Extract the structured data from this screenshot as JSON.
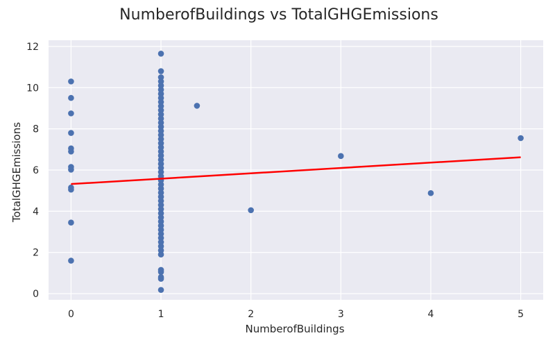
{
  "chart_data": {
    "type": "scatter",
    "title": "NumberofBuildings vs TotalGHGEmissions",
    "xlabel": "NumberofBuildings",
    "ylabel": "TotalGHGEmissions",
    "xlim": [
      -0.25,
      5.25
    ],
    "ylim": [
      -0.3,
      12.3
    ],
    "x_ticks": [
      0,
      1,
      2,
      3,
      4,
      5
    ],
    "y_ticks": [
      0,
      2,
      4,
      6,
      8,
      10,
      12
    ],
    "grid": true,
    "colors": {
      "points": "#4c72b0",
      "fit_line": "#ff0000",
      "plot_bg": "#eaeaf2",
      "grid": "#ffffff"
    },
    "points": [
      {
        "x": 0,
        "y": 10.3
      },
      {
        "x": 0,
        "y": 9.5
      },
      {
        "x": 0,
        "y": 8.75
      },
      {
        "x": 0,
        "y": 7.8
      },
      {
        "x": 0,
        "y": 7.05
      },
      {
        "x": 0,
        "y": 6.9
      },
      {
        "x": 0,
        "y": 6.15
      },
      {
        "x": 0,
        "y": 6.02
      },
      {
        "x": 0,
        "y": 5.15
      },
      {
        "x": 0,
        "y": 5.05
      },
      {
        "x": 0,
        "y": 3.45
      },
      {
        "x": 0,
        "y": 1.6
      },
      {
        "x": 1,
        "y": 11.65
      },
      {
        "x": 1,
        "y": 10.8
      },
      {
        "x": 1,
        "y": 10.5
      },
      {
        "x": 1,
        "y": 10.3
      },
      {
        "x": 1,
        "y": 10.1
      },
      {
        "x": 1,
        "y": 9.9
      },
      {
        "x": 1,
        "y": 9.7
      },
      {
        "x": 1,
        "y": 9.5
      },
      {
        "x": 1,
        "y": 9.3
      },
      {
        "x": 1,
        "y": 9.1
      },
      {
        "x": 1,
        "y": 8.9
      },
      {
        "x": 1,
        "y": 8.7
      },
      {
        "x": 1,
        "y": 8.5
      },
      {
        "x": 1,
        "y": 8.3
      },
      {
        "x": 1,
        "y": 8.1
      },
      {
        "x": 1,
        "y": 7.9
      },
      {
        "x": 1,
        "y": 7.7
      },
      {
        "x": 1,
        "y": 7.5
      },
      {
        "x": 1,
        "y": 7.3
      },
      {
        "x": 1,
        "y": 7.1
      },
      {
        "x": 1,
        "y": 6.9
      },
      {
        "x": 1,
        "y": 6.7
      },
      {
        "x": 1,
        "y": 6.5
      },
      {
        "x": 1,
        "y": 6.3
      },
      {
        "x": 1,
        "y": 6.1
      },
      {
        "x": 1,
        "y": 5.9
      },
      {
        "x": 1,
        "y": 5.7
      },
      {
        "x": 1,
        "y": 5.5
      },
      {
        "x": 1,
        "y": 5.3
      },
      {
        "x": 1,
        "y": 5.1
      },
      {
        "x": 1,
        "y": 4.9
      },
      {
        "x": 1,
        "y": 4.7
      },
      {
        "x": 1,
        "y": 4.5
      },
      {
        "x": 1,
        "y": 4.3
      },
      {
        "x": 1,
        "y": 4.1
      },
      {
        "x": 1,
        "y": 3.9
      },
      {
        "x": 1,
        "y": 3.7
      },
      {
        "x": 1,
        "y": 3.5
      },
      {
        "x": 1,
        "y": 3.3
      },
      {
        "x": 1,
        "y": 3.1
      },
      {
        "x": 1,
        "y": 2.9
      },
      {
        "x": 1,
        "y": 2.7
      },
      {
        "x": 1,
        "y": 2.5
      },
      {
        "x": 1,
        "y": 2.3
      },
      {
        "x": 1,
        "y": 2.1
      },
      {
        "x": 1,
        "y": 1.9
      },
      {
        "x": 1,
        "y": 1.15
      },
      {
        "x": 1,
        "y": 1.05
      },
      {
        "x": 1,
        "y": 0.8
      },
      {
        "x": 1,
        "y": 0.72
      },
      {
        "x": 1,
        "y": 0.18
      },
      {
        "x": 1.4,
        "y": 9.12
      },
      {
        "x": 2,
        "y": 4.05
      },
      {
        "x": 3,
        "y": 6.68
      },
      {
        "x": 4,
        "y": 4.88
      },
      {
        "x": 5,
        "y": 7.55
      }
    ],
    "fit_line": {
      "x": [
        0,
        5
      ],
      "y": [
        5.32,
        6.62
      ]
    }
  }
}
